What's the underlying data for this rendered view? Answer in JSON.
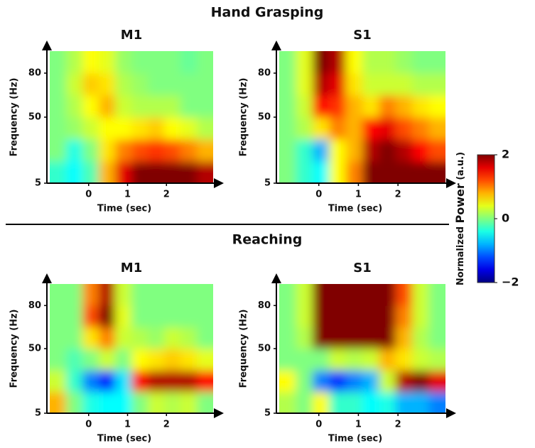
{
  "figure": {
    "sections": [
      "Hand Grasping",
      "Reaching"
    ]
  },
  "colorbar": {
    "clim": [
      -2,
      2
    ],
    "ticks": [
      2,
      0,
      {
        "value": -2,
        "label": "−2"
      }
    ],
    "label_parts": [
      "Normalized ",
      "Power",
      " (a.u.)"
    ]
  },
  "chart_data": [
    {
      "type": "heatmap",
      "title": "M1",
      "xlabel": "Time (sec)",
      "ylabel": "Frequency (Hz)",
      "xlim": [
        -1,
        3.2
      ],
      "xticks": [
        0,
        1,
        2
      ],
      "ylim": [
        5,
        95
      ],
      "yticks": [
        5,
        50,
        80
      ],
      "x": [
        -0.79,
        -0.37,
        0.05,
        0.47,
        0.89,
        1.31,
        1.73,
        2.15,
        2.57,
        2.99
      ],
      "y": [
        12.5,
        27.5,
        42.5,
        57.5,
        72.5,
        87.5
      ],
      "values": [
        [
          -0.3,
          -0.5,
          -0.2,
          0.8,
          1.6,
          2,
          2,
          2,
          2,
          1.8
        ],
        [
          0,
          -0.4,
          0,
          0.6,
          1,
          1.2,
          1.3,
          1.2,
          1,
          0.8
        ],
        [
          0,
          0.1,
          0.3,
          0.5,
          0.5,
          0.6,
          0.7,
          0.5,
          0.4,
          0.2
        ],
        [
          0,
          0.2,
          0.5,
          0.8,
          0.3,
          0.2,
          0.2,
          0.2,
          0,
          0
        ],
        [
          0,
          0.3,
          0.7,
          0.6,
          0.2,
          0.1,
          0,
          0,
          0,
          0
        ],
        [
          0,
          0.2,
          0.5,
          0.4,
          0.1,
          0,
          0,
          0,
          -0.1,
          0
        ]
      ]
    },
    {
      "type": "heatmap",
      "title": "S1",
      "xlabel": "Time (sec)",
      "ylabel": "Frequency (Hz)",
      "xlim": [
        -1,
        3.2
      ],
      "xticks": [
        0,
        1,
        2
      ],
      "ylim": [
        5,
        95
      ],
      "yticks": [
        5,
        50,
        80
      ],
      "x": [
        -0.79,
        -0.37,
        0.05,
        0.47,
        0.89,
        1.31,
        1.73,
        2.15,
        2.57,
        2.99
      ],
      "y": [
        12.5,
        27.5,
        42.5,
        57.5,
        72.5,
        87.5
      ],
      "values": [
        [
          0,
          -0.3,
          -0.5,
          0.5,
          1,
          2,
          2,
          2,
          2,
          2
        ],
        [
          0,
          -0.3,
          -0.8,
          0.5,
          0.8,
          1.8,
          2,
          1.8,
          1.5,
          1.2
        ],
        [
          0,
          0.2,
          0.6,
          1,
          0.8,
          1.5,
          1.6,
          1.2,
          1,
          0.8
        ],
        [
          0,
          0.3,
          1.5,
          1.3,
          0.8,
          0.6,
          1,
          0.8,
          0.6,
          0.5
        ],
        [
          0,
          0.4,
          1.8,
          1.6,
          0.6,
          0.3,
          0.3,
          0.3,
          0.2,
          0.2
        ],
        [
          0,
          0.4,
          2,
          1.8,
          0.5,
          0.2,
          0.2,
          0.1,
          0,
          0
        ]
      ]
    },
    {
      "type": "heatmap",
      "title": "M1",
      "xlabel": "Time (sec)",
      "ylabel": "Frequency (Hz)",
      "xlim": [
        -1,
        3.2
      ],
      "xticks": [
        0,
        1,
        2
      ],
      "ylim": [
        5,
        95
      ],
      "yticks": [
        5,
        50,
        80
      ],
      "x": [
        -0.79,
        -0.37,
        0.05,
        0.47,
        0.89,
        1.31,
        1.73,
        2.15,
        2.57,
        2.99
      ],
      "y": [
        12.5,
        27.5,
        42.5,
        57.5,
        72.5,
        87.5
      ],
      "values": [
        [
          0.8,
          0,
          -0.4,
          -0.5,
          -0.5,
          0,
          0.3,
          0.2,
          0.3,
          0
        ],
        [
          0.3,
          -0.3,
          -1,
          -1.4,
          -0.6,
          1.5,
          1.8,
          1.8,
          1.8,
          1.5
        ],
        [
          0,
          -0.2,
          0,
          0.3,
          0,
          0.5,
          0.6,
          0.7,
          0.6,
          0.4
        ],
        [
          0,
          0,
          0.6,
          1,
          0.3,
          0.2,
          0.1,
          0.3,
          0.2,
          0
        ],
        [
          0,
          0,
          1.2,
          2,
          0.4,
          0,
          0,
          0,
          0,
          0
        ],
        [
          0,
          0,
          1,
          1.8,
          0.3,
          0,
          0,
          0,
          0,
          0
        ]
      ]
    },
    {
      "type": "heatmap",
      "title": "S1",
      "xlabel": "Time (sec)",
      "ylabel": "Frequency (Hz)",
      "xlim": [
        -1,
        3.2
      ],
      "xticks": [
        0,
        1,
        2
      ],
      "ylim": [
        5,
        95
      ],
      "yticks": [
        5,
        50,
        80
      ],
      "x": [
        -0.79,
        -0.37,
        0.05,
        0.47,
        0.89,
        1.31,
        1.73,
        2.15,
        2.57,
        2.99
      ],
      "y": [
        12.5,
        27.5,
        42.5,
        57.5,
        72.5,
        87.5
      ],
      "values": [
        [
          0.2,
          0,
          0.5,
          -0.3,
          -0.3,
          -0.5,
          -0.4,
          -0.8,
          -0.8,
          -1
        ],
        [
          0.5,
          0,
          -1,
          -1.3,
          -1,
          -0.8,
          0.3,
          1.8,
          2,
          1.6
        ],
        [
          0,
          0,
          0,
          0.3,
          0.2,
          0.3,
          0.8,
          0.6,
          0.3,
          0.2
        ],
        [
          0,
          0.2,
          2,
          2,
          2,
          2,
          2,
          0.8,
          0.2,
          0
        ],
        [
          0,
          0.3,
          2,
          2,
          2,
          2,
          2,
          1,
          0.3,
          0
        ],
        [
          0,
          0.3,
          2,
          2,
          2,
          2,
          2,
          1.2,
          0.3,
          0
        ]
      ]
    }
  ]
}
